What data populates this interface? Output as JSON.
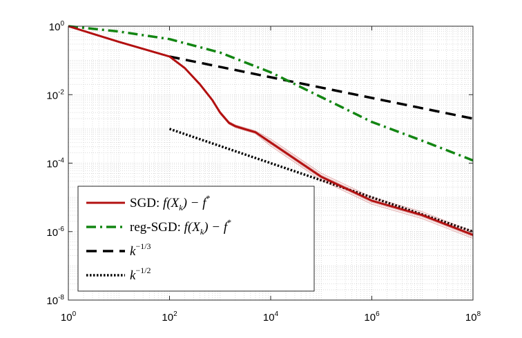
{
  "chart_data": {
    "type": "line",
    "title": "",
    "xlabel": "",
    "ylabel": "",
    "x_scale": "log",
    "y_scale": "log",
    "xlim": [
      1,
      100000000
    ],
    "ylim": [
      1e-08,
      1
    ],
    "grid": true,
    "legend_position": "bottom-left",
    "x_ticks": [
      {
        "base": "10",
        "exp": "0",
        "value": 1
      },
      {
        "base": "10",
        "exp": "2",
        "value": 100
      },
      {
        "base": "10",
        "exp": "4",
        "value": 10000
      },
      {
        "base": "10",
        "exp": "6",
        "value": 1000000
      },
      {
        "base": "10",
        "exp": "8",
        "value": 100000000
      }
    ],
    "y_ticks": [
      {
        "base": "10",
        "exp": "0",
        "value": 1
      },
      {
        "base": "10",
        "exp": "-2",
        "value": 0.01
      },
      {
        "base": "10",
        "exp": "-4",
        "value": 0.0001
      },
      {
        "base": "10",
        "exp": "-6",
        "value": 1e-06
      },
      {
        "base": "10",
        "exp": "-8",
        "value": 1e-08
      }
    ],
    "series": [
      {
        "name": "SGD",
        "legend": {
          "prefix": "SGD: ",
          "formula": "f(X",
          "sub": "k",
          "formula_end": ") − f",
          "sup": "*"
        },
        "color": "#b21010",
        "style": "solid",
        "x": [
          1,
          10,
          100,
          200,
          400,
          700,
          1000,
          1500,
          2000,
          3000,
          5000,
          10000,
          20000,
          50000,
          100000,
          1000000,
          10000000,
          100000000
        ],
        "y": [
          1,
          0.35,
          0.13,
          0.06,
          0.02,
          0.007,
          0.003,
          0.0015,
          0.0012,
          0.001,
          0.0008,
          0.0004,
          0.0002,
          8e-05,
          4e-05,
          8e-06,
          3e-06,
          8e-07
        ]
      },
      {
        "name": "reg-SGD",
        "legend": {
          "prefix": "reg-SGD: ",
          "formula": "f(X",
          "sub": "k",
          "formula_end": ") − f",
          "sup": "*"
        },
        "color": "#128512",
        "style": "dashdot",
        "x": [
          1,
          10,
          100,
          1000,
          10000,
          100000,
          1000000,
          10000000,
          100000000
        ],
        "y": [
          1,
          0.7,
          0.42,
          0.17,
          0.045,
          0.0085,
          0.0016,
          0.00045,
          0.00012
        ]
      },
      {
        "name": "k^-1/3",
        "legend": {
          "prefix": "",
          "formula": "k",
          "sub": "",
          "formula_end": "",
          "sup": "−1/3"
        },
        "color": "#000000",
        "style": "dashed",
        "x": [
          100,
          100000000
        ],
        "y": [
          0.13,
          0.002
        ]
      },
      {
        "name": "k^-1/2",
        "legend": {
          "prefix": "",
          "formula": "k",
          "sub": "",
          "formula_end": "",
          "sup": "−1/2"
        },
        "color": "#000000",
        "style": "dotted",
        "x": [
          100,
          100000000
        ],
        "y": [
          0.001,
          1e-06
        ]
      }
    ]
  }
}
